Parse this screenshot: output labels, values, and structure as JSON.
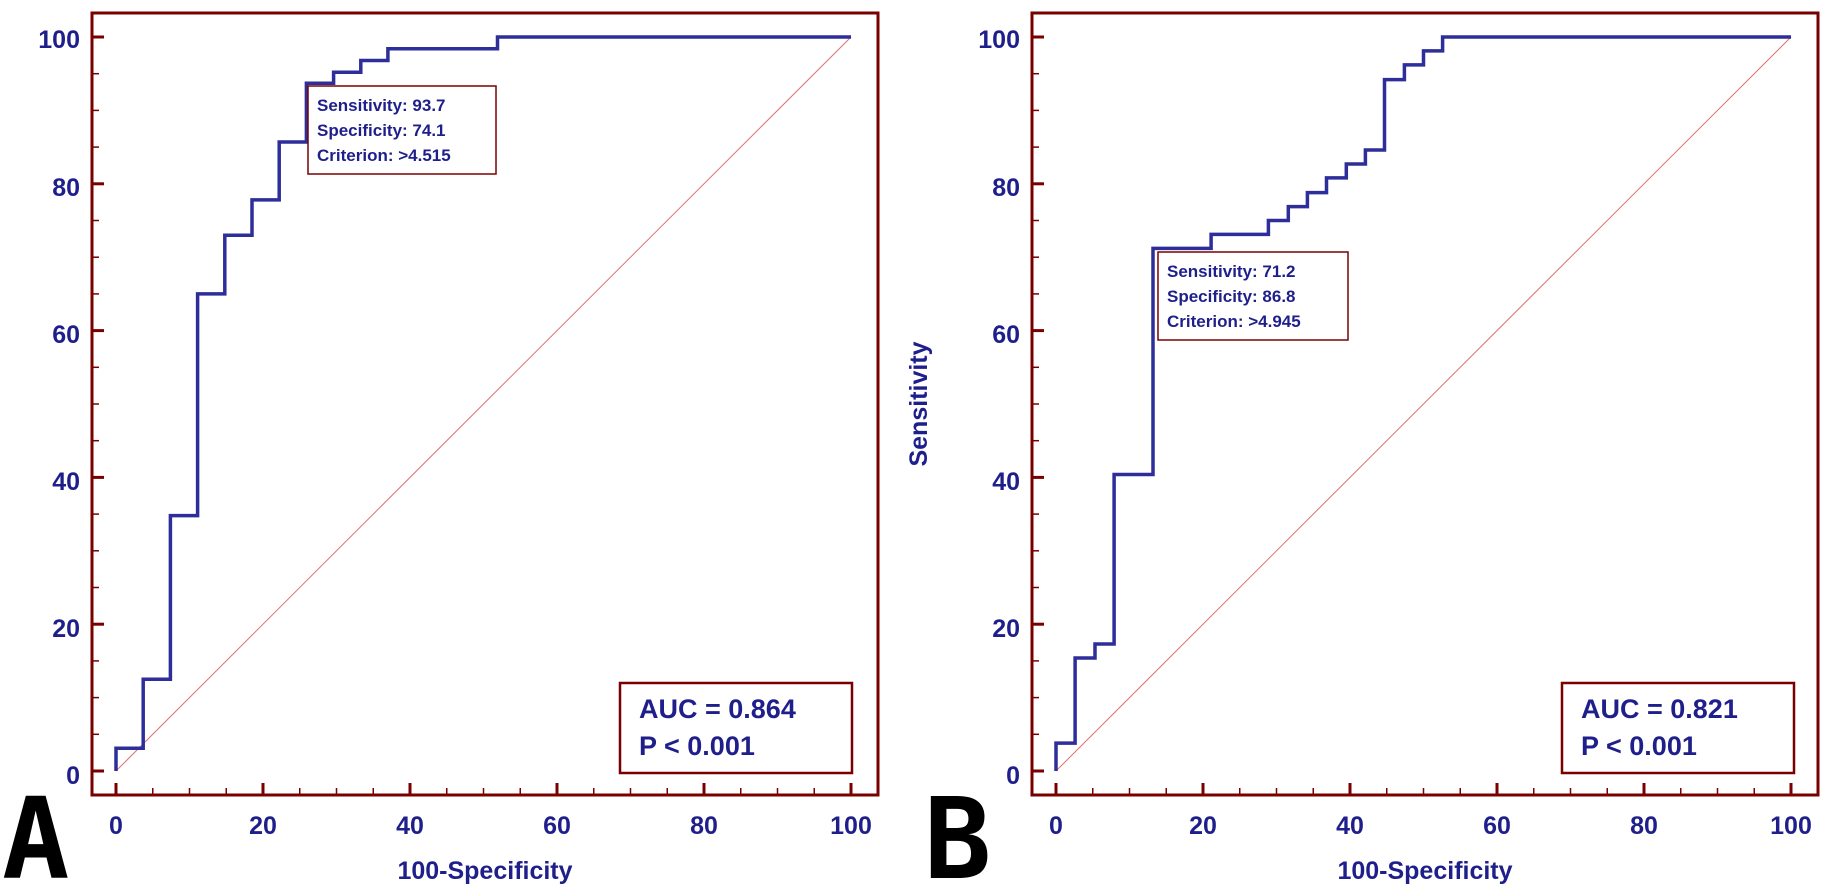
{
  "colors": {
    "frame": "#7a0000",
    "curve": "#2e2e9a",
    "text": "#1f1f8c",
    "diagonal": "#e07070",
    "letter": "#000000"
  },
  "chart_data": [
    {
      "type": "line",
      "panel_label": "A",
      "xlabel": "100-Specificity",
      "ylabel": "",
      "xlim": [
        0,
        100
      ],
      "ylim": [
        0,
        100
      ],
      "x_ticks": [
        "0",
        "20",
        "40",
        "60",
        "80",
        "100"
      ],
      "y_ticks": [
        "0",
        "20",
        "40",
        "60",
        "80",
        "100"
      ],
      "series": [
        {
          "name": "ROC curve",
          "x": [
            0,
            0,
            3.7,
            3.7,
            7.4,
            7.4,
            11.1,
            11.1,
            14.8,
            14.8,
            18.5,
            18.5,
            22.2,
            22.2,
            25.9,
            25.9,
            29.6,
            29.6,
            33.3,
            33.3,
            37.0,
            37.0,
            51.9,
            51.9,
            100
          ],
          "y": [
            0,
            3.1,
            3.1,
            12.5,
            12.5,
            34.8,
            34.8,
            65.0,
            65.0,
            73.0,
            73.0,
            77.8,
            77.8,
            85.7,
            85.7,
            93.7,
            93.7,
            95.2,
            95.2,
            96.8,
            96.8,
            98.4,
            98.4,
            100,
            100
          ]
        },
        {
          "name": "Reference line",
          "x": [
            0,
            100
          ],
          "y": [
            0,
            100
          ]
        }
      ],
      "annotation": {
        "sensitivity": "Sensitivity: 93.7",
        "specificity": "Specificity: 74.1",
        "criterion": "Criterion: >4.515"
      },
      "auc_box": {
        "auc": "AUC = 0.864",
        "p": "P < 0.001"
      }
    },
    {
      "type": "line",
      "panel_label": "B",
      "xlabel": "100-Specificity",
      "ylabel": "Sensitivity",
      "xlim": [
        0,
        100
      ],
      "ylim": [
        0,
        100
      ],
      "x_ticks": [
        "0",
        "20",
        "40",
        "60",
        "80",
        "100"
      ],
      "y_ticks": [
        "0",
        "20",
        "40",
        "60",
        "80",
        "100"
      ],
      "series": [
        {
          "name": "ROC curve",
          "x": [
            0,
            0,
            2.6,
            2.6,
            5.3,
            5.3,
            7.9,
            7.9,
            13.2,
            13.2,
            21.1,
            21.1,
            28.9,
            28.9,
            31.6,
            31.6,
            34.2,
            34.2,
            36.8,
            36.8,
            39.5,
            39.5,
            42.1,
            42.1,
            44.7,
            44.7,
            47.4,
            47.4,
            50.0,
            50.0,
            52.6,
            52.6,
            100
          ],
          "y": [
            0,
            3.8,
            3.8,
            15.4,
            15.4,
            17.3,
            17.3,
            40.4,
            40.4,
            71.2,
            71.2,
            73.1,
            73.1,
            75.0,
            75.0,
            76.9,
            76.9,
            78.8,
            78.8,
            80.8,
            80.8,
            82.7,
            82.7,
            84.6,
            84.6,
            94.2,
            94.2,
            96.2,
            96.2,
            98.1,
            98.1,
            100,
            100
          ]
        },
        {
          "name": "Reference line",
          "x": [
            0,
            100
          ],
          "y": [
            0,
            100
          ]
        }
      ],
      "annotation": {
        "sensitivity": "Sensitivity: 71.2",
        "specificity": "Specificity: 86.8",
        "criterion": "Criterion: >4.945"
      },
      "auc_box": {
        "auc": "AUC = 0.821",
        "p": "P < 0.001"
      }
    }
  ]
}
